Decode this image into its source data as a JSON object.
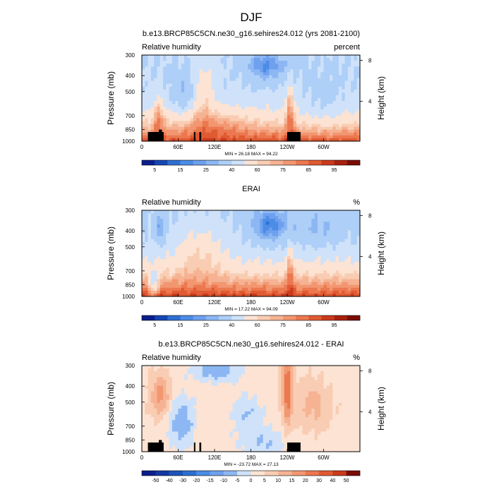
{
  "figure": {
    "title": "DJF"
  },
  "chart_data": [
    {
      "type": "heatmap",
      "title": "b.e13.BRCP85C5CN.ne30_g16.sehires24.012 (yrs 2081-2100)",
      "variable_label": "Relative humidity",
      "units": "percent",
      "xlabel": "",
      "ylabel": "Pressure (mb)",
      "y2label": "Height (km)",
      "x_ticks": [
        "0",
        "60E",
        "120E",
        "180",
        "120W",
        "60W"
      ],
      "y_ticks": [
        "300",
        "400",
        "500",
        "700",
        "850",
        "1000"
      ],
      "y2_ticks": [
        "8",
        "4"
      ],
      "stats": "MIN = 26.18  MAX = 94.22",
      "colorbar_labels": [
        "5",
        "15",
        "25",
        "40",
        "60",
        "75",
        "85",
        "95"
      ],
      "colorbar_colors": [
        "#0a1e8c",
        "#1446b4",
        "#2d6ed2",
        "#4b8ce6",
        "#6ea0ee",
        "#8cb7f3",
        "#aecff7",
        "#cfe2fa",
        "#fce3d3",
        "#f9cdb3",
        "#f6b393",
        "#f29770",
        "#ec7850",
        "#e05a32",
        "#ca3a1c",
        "#a8200f",
        "#7a0d05"
      ],
      "levels": [
        5,
        10,
        15,
        20,
        25,
        30,
        40,
        50,
        60,
        65,
        70,
        75,
        80,
        85,
        90,
        95
      ],
      "topo": [
        [
          10,
          36
        ],
        [
          28,
          33
        ],
        [
          86,
          88
        ],
        [
          95,
          98
        ],
        [
          240,
          262
        ]
      ]
    },
    {
      "type": "heatmap",
      "title": "ERAI",
      "variable_label": "Relative humidity",
      "units": "%",
      "xlabel": "",
      "ylabel": "Pressure (mb)",
      "y2label": "Height (km)",
      "x_ticks": [
        "0",
        "60E",
        "120E",
        "180",
        "120W",
        "60W"
      ],
      "y_ticks": [
        "300",
        "400",
        "500",
        "700",
        "850",
        "1000"
      ],
      "y2_ticks": [
        "8",
        "4"
      ],
      "stats": "MIN = 17.22  MAX = 94.09",
      "colorbar_labels": [
        "5",
        "15",
        "25",
        "40",
        "60",
        "75",
        "85",
        "95"
      ],
      "colorbar_colors": [
        "#0a1e8c",
        "#1446b4",
        "#2d6ed2",
        "#4b8ce6",
        "#6ea0ee",
        "#8cb7f3",
        "#aecff7",
        "#cfe2fa",
        "#fce3d3",
        "#f9cdb3",
        "#f6b393",
        "#f29770",
        "#ec7850",
        "#e05a32",
        "#ca3a1c",
        "#a8200f",
        "#7a0d05"
      ],
      "levels": [
        5,
        10,
        15,
        20,
        25,
        30,
        40,
        50,
        60,
        65,
        70,
        75,
        80,
        85,
        90,
        95
      ],
      "topo": []
    },
    {
      "type": "heatmap",
      "title": "b.e13.BRCP85C5CN.ne30_g16.sehires24.012 - ERAI",
      "variable_label": "Relative humidity",
      "units": "%",
      "xlabel": "",
      "ylabel": "Pressure (mb)",
      "y2label": "Height (km)",
      "x_ticks": [
        "0",
        "60E",
        "120E",
        "180",
        "120W",
        "60W"
      ],
      "y_ticks": [
        "300",
        "400",
        "500",
        "700",
        "850",
        "1000"
      ],
      "y2_ticks": [
        "8",
        "4"
      ],
      "stats": "MIN = -23.72  MAX = 27.13",
      "colorbar_labels": [
        "-50",
        "-40",
        "-30",
        "-20",
        "-15",
        "-10",
        "-5",
        "0",
        "5",
        "10",
        "15",
        "20",
        "30",
        "40",
        "50"
      ],
      "colorbar_colors": [
        "#0a1e8c",
        "#14389f",
        "#1e54b8",
        "#2d6ed2",
        "#4b8ce6",
        "#6ea0ee",
        "#8cb7f3",
        "#cfe2fa",
        "#fce3d3",
        "#f9cdb3",
        "#f6b393",
        "#f29770",
        "#ec7850",
        "#e05a32",
        "#ca3a1c",
        "#7a0d05"
      ],
      "levels": [
        -50,
        -40,
        -30,
        -20,
        -15,
        -10,
        -5,
        0,
        5,
        10,
        15,
        20,
        30,
        40,
        50
      ],
      "topo": [
        [
          10,
          36
        ],
        [
          28,
          33
        ],
        [
          86,
          88
        ],
        [
          95,
          98
        ],
        [
          240,
          262
        ]
      ]
    }
  ]
}
